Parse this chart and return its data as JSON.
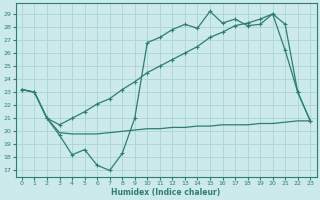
{
  "xlabel": "Humidex (Indice chaleur)",
  "bg_color": "#cceae8",
  "grid_color": "#aed8d5",
  "line_color": "#2e7d72",
  "xlim": [
    -0.5,
    23.5
  ],
  "ylim": [
    16.5,
    29.8
  ],
  "yticks": [
    17,
    18,
    19,
    20,
    21,
    22,
    23,
    24,
    25,
    26,
    27,
    28,
    29
  ],
  "xticks": [
    0,
    1,
    2,
    3,
    4,
    5,
    6,
    7,
    8,
    9,
    10,
    11,
    12,
    13,
    14,
    15,
    16,
    17,
    18,
    19,
    20,
    21,
    22,
    23
  ],
  "line_zigzag_x": [
    0,
    1,
    2,
    3,
    4,
    5,
    6,
    7,
    8,
    9,
    10,
    11,
    12,
    13,
    14,
    15,
    16,
    17,
    18,
    19,
    20,
    21,
    22,
    23
  ],
  "line_zigzag_y": [
    23.2,
    23.0,
    21.0,
    19.7,
    18.2,
    18.6,
    17.4,
    17.0,
    18.3,
    21.0,
    26.8,
    27.2,
    27.8,
    28.2,
    27.9,
    29.2,
    28.3,
    28.6,
    28.1,
    28.2,
    29.0,
    26.2,
    23.0,
    20.8
  ],
  "line_flat_x": [
    0,
    1,
    2,
    3,
    4,
    5,
    6,
    7,
    8,
    9,
    10,
    11,
    12,
    13,
    14,
    15,
    16,
    17,
    18,
    19,
    20,
    21,
    22,
    23
  ],
  "line_flat_y": [
    23.2,
    23.0,
    21.0,
    19.9,
    19.8,
    19.8,
    19.8,
    19.9,
    20.0,
    20.1,
    20.2,
    20.2,
    20.3,
    20.3,
    20.4,
    20.4,
    20.5,
    20.5,
    20.5,
    20.6,
    20.6,
    20.7,
    20.8,
    20.8
  ],
  "line_smooth_x": [
    0,
    1,
    2,
    3,
    4,
    5,
    6,
    7,
    8,
    9,
    10,
    11,
    12,
    13,
    14,
    15,
    16,
    17,
    18,
    19,
    20,
    21,
    22,
    23
  ],
  "line_smooth_y": [
    23.2,
    23.0,
    21.0,
    20.5,
    21.0,
    21.5,
    22.1,
    22.5,
    23.2,
    23.8,
    24.5,
    25.0,
    25.5,
    26.0,
    26.5,
    27.2,
    27.6,
    28.1,
    28.3,
    28.6,
    29.0,
    28.2,
    23.0,
    20.8
  ]
}
